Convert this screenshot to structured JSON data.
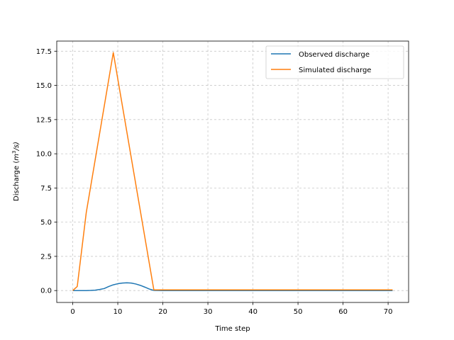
{
  "chart_data": {
    "type": "line",
    "title": "",
    "xlabel": "Time step",
    "ylabel_main": "Discharge (",
    "ylabel_math": "m",
    "ylabel_sup": "3",
    "ylabel_tail": "/s)",
    "xlim": [
      -3.55,
      74.55
    ],
    "ylim": [
      -0.87,
      18.24
    ],
    "xticks": [
      0,
      10,
      20,
      30,
      40,
      50,
      60,
      70
    ],
    "xtick_labels": [
      "0",
      "10",
      "20",
      "30",
      "40",
      "50",
      "60",
      "70"
    ],
    "yticks": [
      0.0,
      2.5,
      5.0,
      7.5,
      10.0,
      12.5,
      15.0,
      17.5
    ],
    "ytick_labels": [
      "0.0",
      "2.5",
      "5.0",
      "7.5",
      "10.0",
      "12.5",
      "15.0",
      "17.5"
    ],
    "grid": true,
    "legend_position": "top-right",
    "series": [
      {
        "name": "Observed discharge",
        "color": "#1f77b4",
        "x": [
          0,
          1,
          2,
          3,
          4,
          5,
          6,
          7,
          8,
          9,
          10,
          11,
          12,
          13,
          14,
          15,
          16,
          17,
          18,
          20,
          71
        ],
        "y": [
          0.0,
          0.0,
          0.0,
          0.0,
          0.01,
          0.03,
          0.08,
          0.15,
          0.3,
          0.42,
          0.5,
          0.55,
          0.57,
          0.55,
          0.48,
          0.38,
          0.25,
          0.11,
          0.01,
          0.0,
          0.0
        ]
      },
      {
        "name": "Simulated discharge",
        "color": "#ff7f0e",
        "x": [
          0,
          1,
          3,
          9,
          18,
          20,
          71
        ],
        "y": [
          0.0,
          0.3,
          5.7,
          17.4,
          0.05,
          0.05,
          0.05
        ]
      }
    ]
  }
}
